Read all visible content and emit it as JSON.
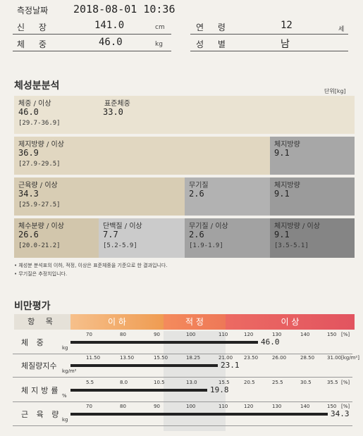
{
  "header": {
    "date_label": "측정날짜",
    "date_value": "2018-08-01 10:36",
    "height_label": "신 장",
    "height_value": "141.0",
    "height_unit": "cm",
    "weight_label": "체 중",
    "weight_value": "46.0",
    "weight_unit": "kg",
    "age_label": "연 령",
    "age_value": "12",
    "age_unit": "세",
    "sex_label": "성 별",
    "sex_value": "남"
  },
  "composition": {
    "title": "체성분분석",
    "unit_label": "단위[kg]",
    "row1": {
      "weight_label": "체중  / 이상",
      "weight_value": "46.0",
      "weight_range": "[29.7-36.9]",
      "std_label": "표준체중",
      "std_value": "33.0"
    },
    "row2": {
      "ffm_label": "제지방량 / 이상",
      "ffm_value": "36.9",
      "ffm_range": "[27.9-29.5]",
      "fat_label": "체지방량",
      "fat_value": "9.1"
    },
    "row3": {
      "muscle_label": "근육량  / 이상",
      "muscle_value": "34.3",
      "muscle_range": "[25.9-27.5]",
      "mineral_label": "무기질",
      "mineral_value": "2.6",
      "fat_label": "체지방량",
      "fat_value": "9.1"
    },
    "row4": {
      "water_label": "체수분량  / 이상",
      "water_value": "26.6",
      "water_range": "[20.0-21.2]",
      "protein_label": "단백질  / 이상",
      "protein_value": "7.7",
      "protein_range": "[5.2-5.9]",
      "mineral_label": "무기질  / 이상",
      "mineral_value": "2.6",
      "mineral_range": "[1.9-1.9]",
      "fat_label": "체지방량 / 이상",
      "fat_value": "9.1",
      "fat_range": "[3.5-5.1]"
    },
    "notes": [
      "• 체성분 분석표의 이하, 적정, 이상은 표준체중을 기준으로 한 결과입니다.",
      "• 무기질은 추정치입니다."
    ]
  },
  "obesity": {
    "title": "비만평가",
    "header_item": "항  목",
    "bands": {
      "low": "이 하",
      "normal": "적 정",
      "high": "이 상"
    },
    "band_colors": {
      "low": "#f0a65e",
      "normal": "#f07f5c",
      "high": "#e85a5e"
    },
    "rows": [
      {
        "label": "체 중",
        "unit": "kg",
        "ticks": [
          "70",
          "80",
          "90",
          "100",
          "110",
          "120",
          "130",
          "140",
          "150",
          "[%]"
        ],
        "value": "46.0",
        "fill": 0.7
      },
      {
        "label": "체질량지수",
        "unit": "kg/m²",
        "ticks": [
          "11.50",
          "13.50",
          "15.50",
          "18.25",
          "21.00",
          "23.50",
          "26.00",
          "28.50",
          "31.00",
          "[kg/m²]"
        ],
        "value": "23.1",
        "fill": 0.55
      },
      {
        "label": "체지방률",
        "unit": "%",
        "ticks": [
          "5.5",
          "8.0",
          "10.5",
          "13.0",
          "15.5",
          "20.5",
          "25.5",
          "30.5",
          "35.5",
          "[%]"
        ],
        "value": "19.8",
        "fill": 0.51
      },
      {
        "label": "근 육 량",
        "unit": "kg",
        "ticks": [
          "70",
          "80",
          "90",
          "100",
          "110",
          "120",
          "130",
          "140",
          "150",
          "[%]"
        ],
        "value": "34.3",
        "fill": 0.96
      }
    ]
  }
}
